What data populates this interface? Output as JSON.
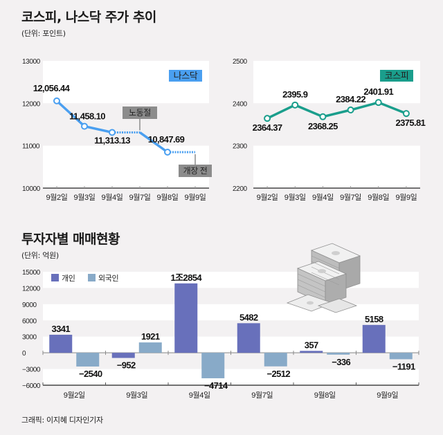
{
  "header": {
    "title": "코스피, 나스닥 주가 추이",
    "unit": "(단위: 포인트)"
  },
  "section2": {
    "title": "투자자별 매매현황",
    "unit": "(단위: 억원)"
  },
  "credit": "그래픽: 이지혜 디자인기자",
  "colors": {
    "nasdaq": "#4a9ff0",
    "kospi": "#1a9e8c",
    "individual": "#6870bb",
    "foreign": "#88aac8",
    "annotation": "#8c8c8c",
    "background": "#f3f1f2"
  },
  "chart_data": [
    {
      "type": "line",
      "title": "나스닥",
      "badge": "나스닥",
      "categories": [
        "9월2일",
        "9월3일",
        "9월4일",
        "9월7일",
        "9월8일",
        "9월9일"
      ],
      "values": [
        12056.44,
        11458.1,
        11313.13,
        null,
        10847.69,
        null
      ],
      "labels": [
        "12,056.44",
        "11,458.10",
        "11,313.13",
        "",
        "10,847.69",
        ""
      ],
      "yticks": [
        "13000",
        "12000",
        "11000",
        "10000"
      ],
      "ylim": [
        10000,
        13000
      ],
      "annotations": [
        {
          "category": "9월7일",
          "text": "노동절",
          "note": "holiday - dotted segment"
        },
        {
          "category": "9월9일",
          "text": "개장 전",
          "note": "before market open - dotted segment"
        }
      ]
    },
    {
      "type": "line",
      "title": "코스피",
      "badge": "코스피",
      "categories": [
        "9월2일",
        "9월3일",
        "9월4일",
        "9월7일",
        "9월8일",
        "9월9일"
      ],
      "values": [
        2364.37,
        2395.9,
        2368.25,
        2384.22,
        2401.91,
        2375.81
      ],
      "labels": [
        "2364.37",
        "2395.9",
        "2368.25",
        "2384.22",
        "2401.91",
        "2375.81"
      ],
      "yticks": [
        "2500",
        "2400",
        "2300",
        "2200"
      ],
      "ylim": [
        2200,
        2500
      ]
    },
    {
      "type": "bar",
      "title": "투자자별 매매현황",
      "categories": [
        "9월2일",
        "9월3일",
        "9월4일",
        "9월7일",
        "9월8일",
        "9월9일"
      ],
      "series": [
        {
          "name": "개인",
          "values": [
            3341,
            -952,
            12854,
            5482,
            357,
            5158
          ],
          "labels": [
            "3341",
            "−952",
            "1조2854",
            "5482",
            "357",
            "5158"
          ]
        },
        {
          "name": "외국인",
          "values": [
            -2540,
            1921,
            -4714,
            -2512,
            -336,
            -1191
          ],
          "labels": [
            "−2540",
            "1921",
            "−4714",
            "−2512",
            "−336",
            "−1191"
          ]
        }
      ],
      "yticks": [
        "15000",
        "12000",
        "9000",
        "6000",
        "3000",
        "0",
        "−3000",
        "−6000"
      ],
      "ylim": [
        -6000,
        15000
      ],
      "legend": "top-left"
    }
  ]
}
